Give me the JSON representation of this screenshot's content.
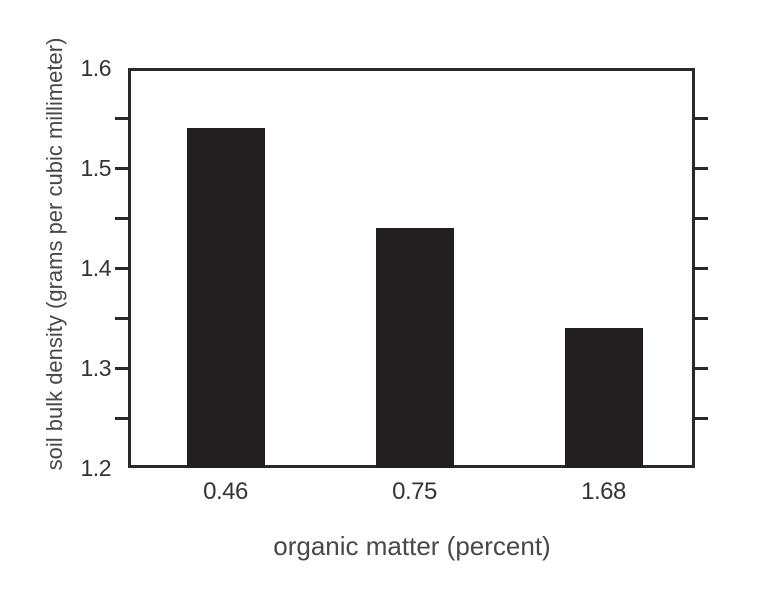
{
  "figure": {
    "background": "#ffffff"
  },
  "chart_data": {
    "type": "bar",
    "categories": [
      "0.46",
      "0.75",
      "1.68"
    ],
    "values": [
      1.54,
      1.44,
      1.34
    ],
    "title": "",
    "xlabel": "organic matter (percent)",
    "ylabel": "soil bulk density (grams per cubic millimeter)",
    "ylim": [
      1.2,
      1.6
    ],
    "ytick_labels": [
      "1.6",
      "1.5",
      "1.4",
      "1.3",
      "1.2"
    ],
    "ytick_step": 0.1,
    "minor_tick_step": 0.05,
    "grid": false,
    "legend": null,
    "bar_color": "#231f20",
    "axis_color": "#2b2829",
    "tick_label_color": "#363334",
    "axis_title_color": "#4a4749"
  }
}
